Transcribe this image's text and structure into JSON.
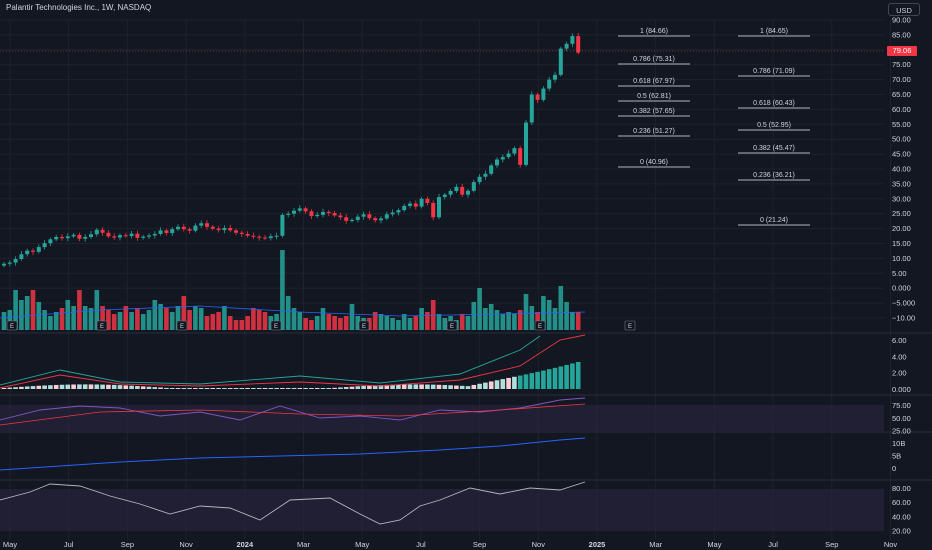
{
  "header": {
    "title": "Palantir Technologies Inc., 1W, NASDAQ",
    "currency_button": "USD"
  },
  "price": {
    "current_label": "79.06",
    "current_value": 79.06
  },
  "price_axis": [
    "90.00",
    "85.00",
    "80.00",
    "75.00",
    "70.00",
    "65.00",
    "60.00",
    "55.00",
    "50.00",
    "45.00",
    "40.00",
    "35.00",
    "30.00",
    "25.00",
    "20.00",
    "15.00",
    "10.00",
    "5.00",
    "0.000",
    "−5.000",
    "−10.00"
  ],
  "macd_axis": [
    "6.00",
    "4.00",
    "2.00",
    "0.000"
  ],
  "rsi_axis": [
    "75.00",
    "50.00",
    "25.00"
  ],
  "obv_axis": [
    "10B",
    "5B",
    "0"
  ],
  "osc_axis": [
    "80.00",
    "60.00",
    "40.00",
    "20.00"
  ],
  "time_axis": [
    "May",
    "Jul",
    "Sep",
    "Nov",
    "2024",
    "Mar",
    "May",
    "Jul",
    "Sep",
    "Nov",
    "2025",
    "Mar",
    "May",
    "Jul",
    "Sep",
    "Nov"
  ],
  "fib_left": [
    "1 (84.66)",
    "0.786 (75.31)",
    "0.618 (67.97)",
    "0.5 (62.81)",
    "0.382 (57.65)",
    "0.236 (51.27)",
    "0 (40.96)"
  ],
  "fib_right": [
    "1 (84.65)",
    "0.786 (71.09)",
    "0.618 (60.43)",
    "0.5 (52.95)",
    "0.382 (45.47)",
    "0.236 (36.21)",
    "0 (21.24)"
  ],
  "earnings_marker": "E",
  "colors": {
    "up": "#26a69a",
    "down": "#f23645",
    "bg": "#131722",
    "grid": "#1e222d",
    "fast_line": "#2962ff",
    "signal_line": "#f23645",
    "band_fill": "#2a2540"
  }
}
